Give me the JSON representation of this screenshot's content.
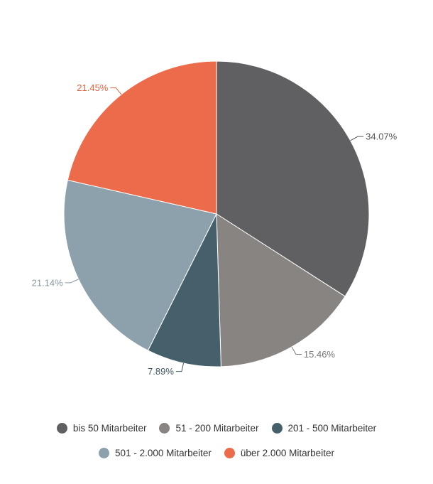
{
  "chart_data": {
    "type": "pie",
    "title": "",
    "slices": [
      {
        "name": "bis 50 Mitarbeiter",
        "value": 34.07,
        "label": "34.07%",
        "color": "#606062"
      },
      {
        "name": "51 - 200 Mitarbeiter",
        "value": 15.46,
        "label": "15.46%",
        "color": "#878482"
      },
      {
        "name": "201 - 500 Mitarbeiter",
        "value": 7.89,
        "label": "7.89%",
        "color": "#46606b"
      },
      {
        "name": "501 - 2.000 Mitarbeiter",
        "value": 21.14,
        "label": "21.14%",
        "color": "#8ca1ab"
      },
      {
        "name": "über 2.000 Mitarbeiter",
        "value": 21.45,
        "label": "21.45%",
        "color": "#ec6b4b"
      }
    ],
    "label_colors": [
      "#555555",
      "#777777",
      "#3f5863",
      "#8a9aa2",
      "#e8613f"
    ],
    "legend_position": "bottom"
  }
}
